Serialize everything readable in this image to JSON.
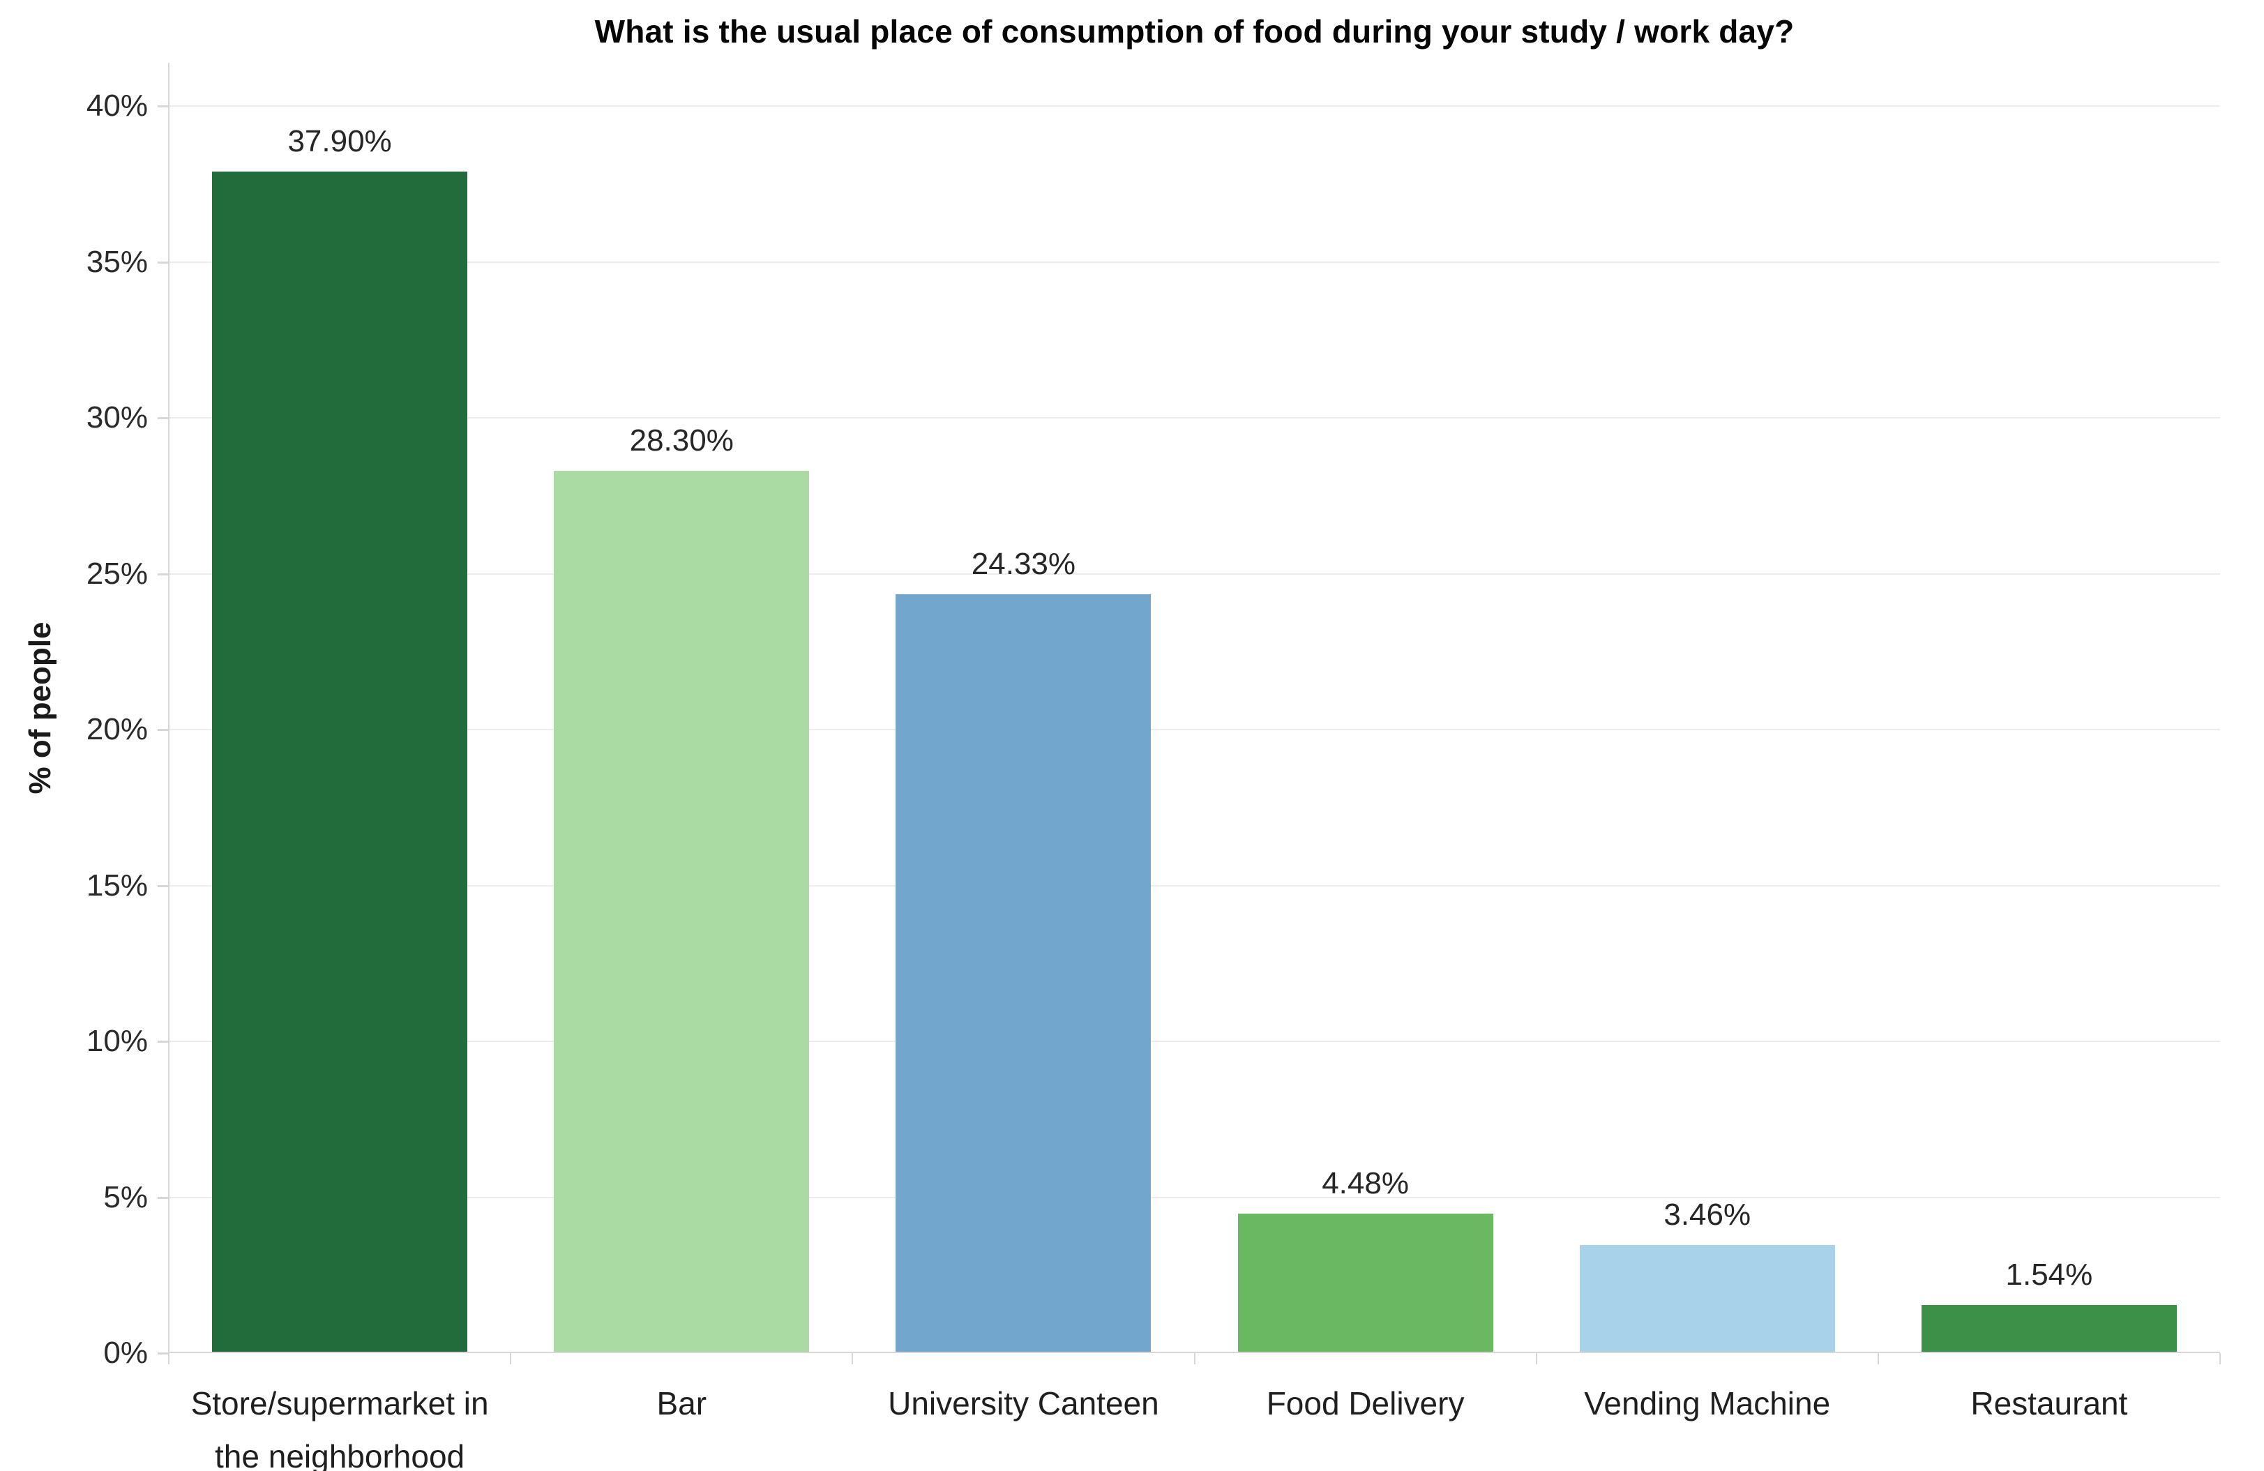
{
  "chart_data": {
    "type": "bar",
    "title": "What is the usual place of consumption of food during your study / work day?",
    "xlabel": "",
    "ylabel": "% of people",
    "categories": [
      "Store/supermarket in the neighborhood",
      "Bar",
      "University Canteen",
      "Food Delivery",
      "Vending Machine",
      "Restaurant"
    ],
    "values": [
      37.9,
      28.3,
      24.33,
      4.48,
      3.46,
      1.54
    ],
    "value_labels": [
      "37.90%",
      "28.30%",
      "24.33%",
      "4.48%",
      "3.46%",
      "1.54%"
    ],
    "bar_colors": [
      "#226b3b",
      "#a9dba2",
      "#72a6cc",
      "#6ab861",
      "#a8d2e9",
      "#3d9048"
    ],
    "y_tick_labels": [
      "0%",
      "5%",
      "10%",
      "15%",
      "20%",
      "25%",
      "30%",
      "35%",
      "40%"
    ],
    "y_tick_values": [
      0,
      5,
      10,
      15,
      20,
      25,
      30,
      35,
      40
    ],
    "ylim": [
      0,
      41.4
    ],
    "grid": true,
    "legend_position": "none"
  },
  "colors": {
    "background": "#ffffff",
    "gridline": "#ececec",
    "axis": "#d7d7d7",
    "title_text": "#060606",
    "tick_text": "#2a2a2a",
    "label_text": "#262626"
  }
}
